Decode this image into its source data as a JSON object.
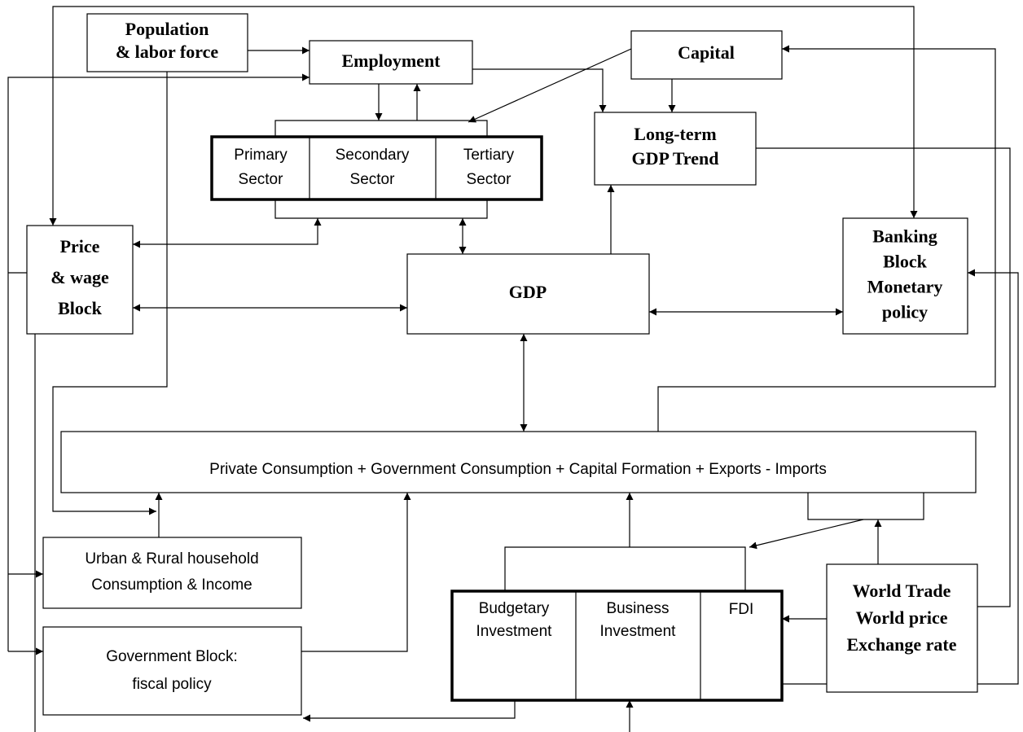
{
  "nodes": [
    {
      "lines": [
        "Population",
        "& labor force"
      ]
    },
    {
      "lines": [
        "Employment"
      ]
    },
    {
      "lines": [
        "Capital"
      ]
    },
    {
      "lines": [
        "Long-term",
        "GDP Trend"
      ]
    },
    {
      "lines": [
        "Primary",
        "Sector"
      ]
    },
    {
      "lines": [
        "Secondary",
        "Sector"
      ]
    },
    {
      "lines": [
        "Tertiary",
        "Sector"
      ]
    },
    {
      "lines": [
        "Price",
        "& wage",
        "Block"
      ]
    },
    {
      "lines": [
        "GDP"
      ]
    },
    {
      "lines": [
        "Banking",
        "Block",
        "Monetary",
        "policy"
      ]
    },
    {
      "lines": [
        "Private Consumption + Government Consumption + Capital Formation + Exports - Imports"
      ]
    },
    {
      "lines": [
        "Urban & Rural household",
        "Consumption & Income"
      ]
    },
    {
      "lines": [
        "Government Block:",
        "fiscal policy"
      ]
    },
    {
      "lines": [
        "Budgetary",
        "Investment"
      ]
    },
    {
      "lines": [
        "Business",
        "Investment"
      ]
    },
    {
      "lines": [
        "FDI"
      ]
    },
    {
      "lines": [
        "World Trade",
        "World price",
        "Exchange rate"
      ]
    }
  ]
}
